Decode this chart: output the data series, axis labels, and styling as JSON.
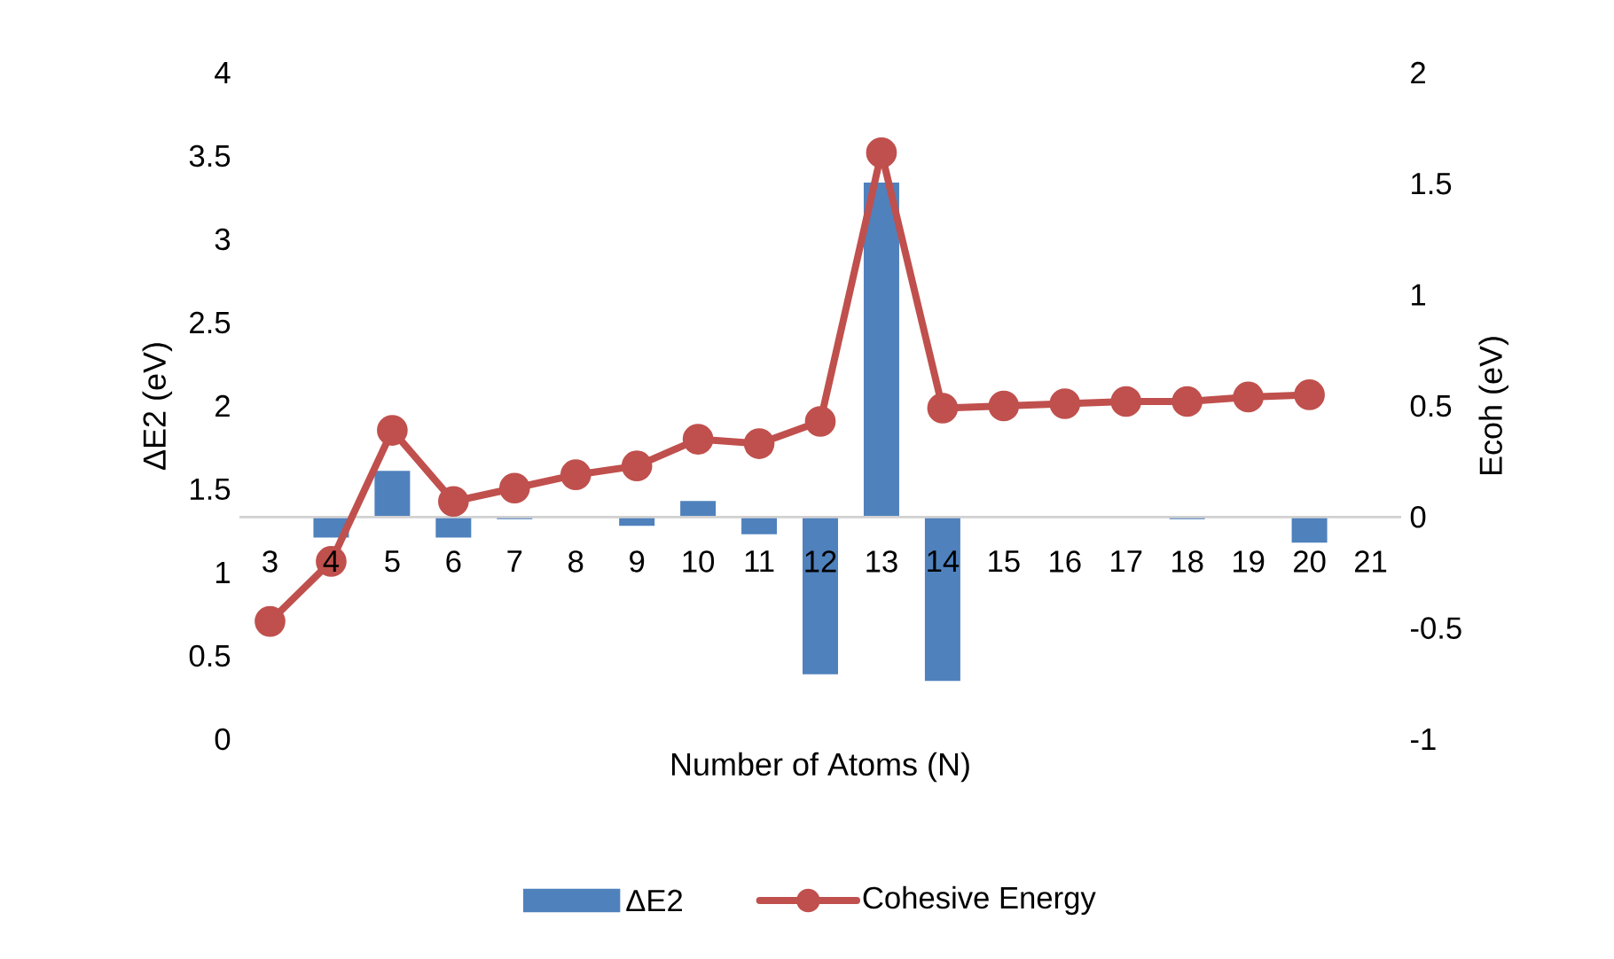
{
  "chart_data": {
    "type": "bar",
    "xlabel": "Number of Atoms (N)",
    "ylabel": "ΔE2  (eV)",
    "y2label": "Ecoh (eV)",
    "categories": [
      "3",
      "4",
      "5",
      "6",
      "7",
      "8",
      "9",
      "10",
      "11",
      "12",
      "13",
      "14",
      "15",
      "16",
      "17",
      "18",
      "19",
      "20",
      "21"
    ],
    "ylim": [
      0,
      4
    ],
    "yticks": [
      0,
      0.5,
      1,
      1.5,
      2,
      2.5,
      3,
      3.5,
      4
    ],
    "y2lim": [
      -1,
      2
    ],
    "y2ticks": [
      -1,
      -0.5,
      0,
      0.5,
      1,
      1.5,
      2
    ],
    "legend": "bottom",
    "marker": "circle",
    "series": [
      {
        "name": "ΔE2",
        "color": "#4f81bd",
        "base": [
          null,
          1.33,
          1.33,
          1.33,
          1.33,
          null,
          1.33,
          1.33,
          1.33,
          1.33,
          1.33,
          1.33,
          null,
          null,
          null,
          1.33,
          null,
          1.33,
          null
        ],
        "values": [
          null,
          -0.12,
          0.28,
          -0.12,
          -0.01,
          null,
          -0.05,
          0.1,
          -0.1,
          -0.94,
          2.01,
          -0.98,
          null,
          null,
          null,
          -0.01,
          null,
          -0.15,
          null
        ]
      },
      {
        "name": "Cohesive Energy",
        "type": "line",
        "axis": "y2",
        "color": "#c0504d",
        "values": [
          -0.47,
          -0.2,
          0.39,
          0.07,
          0.13,
          0.19,
          0.23,
          0.35,
          0.33,
          0.43,
          1.64,
          0.49,
          0.5,
          0.51,
          0.52,
          0.52,
          0.54,
          0.55,
          null
        ]
      }
    ]
  }
}
